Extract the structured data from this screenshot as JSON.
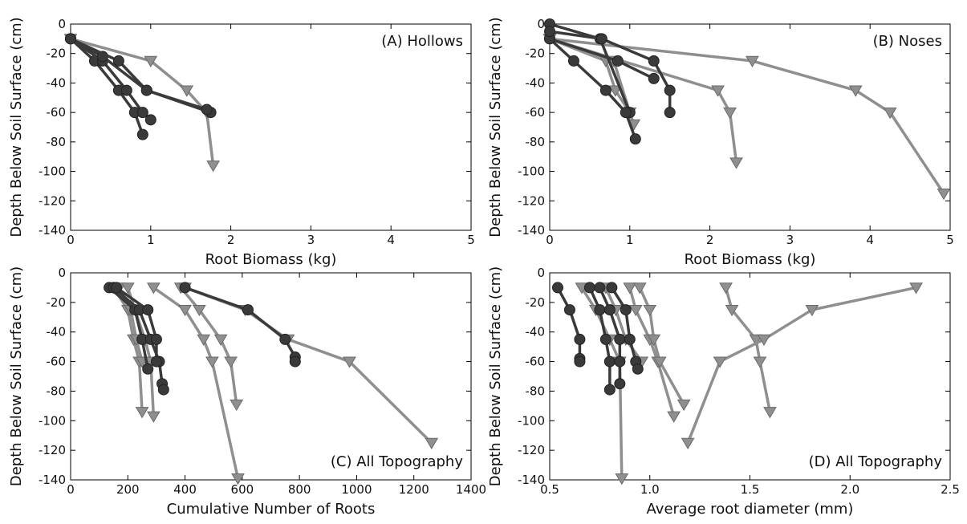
{
  "figure": {
    "ylabel": "Depth Below Soil Surface (cm)"
  },
  "colors": {
    "circle": "#3a3a3a",
    "circle_edge": "#222222",
    "triangle": "#8f8f8f",
    "triangle_edge": "#6a6a6a",
    "axes": "#000000"
  },
  "chart_data": [
    {
      "id": "A",
      "type": "line",
      "title": "(A) Hollows",
      "xlabel": "Root Biomass (kg)",
      "ylabel": "Depth Below Soil Surface (cm)",
      "xlim": [
        0,
        5
      ],
      "ylim": [
        -140,
        0
      ],
      "xticks": [
        0,
        1,
        2,
        3,
        4,
        5
      ],
      "yticks": [
        0,
        -20,
        -40,
        -60,
        -80,
        -100,
        -120,
        -140
      ],
      "grid": false,
      "series": [
        {
          "marker": "circle",
          "points": [
            [
              0,
              -10
            ],
            [
              0.3,
              -25
            ],
            [
              0.6,
              -45
            ],
            [
              0.8,
              -60
            ],
            [
              0.9,
              -75
            ]
          ]
        },
        {
          "marker": "circle",
          "points": [
            [
              0,
              -10
            ],
            [
              0.4,
              -25
            ],
            [
              0.7,
              -45
            ],
            [
              0.9,
              -60
            ],
            [
              1.0,
              -65
            ]
          ]
        },
        {
          "marker": "circle",
          "points": [
            [
              0,
              -10
            ],
            [
              0.4,
              -22
            ],
            [
              0.95,
              -45
            ],
            [
              1.75,
              -60
            ]
          ]
        },
        {
          "marker": "circle",
          "points": [
            [
              0,
              -10
            ],
            [
              0.6,
              -25
            ],
            [
              0.95,
              -45
            ],
            [
              1.7,
              -58
            ]
          ]
        },
        {
          "marker": "triangle",
          "points": [
            [
              0,
              -10
            ],
            [
              1.0,
              -25
            ],
            [
              1.45,
              -45
            ],
            [
              1.7,
              -60
            ],
            [
              1.78,
              -96
            ]
          ]
        }
      ]
    },
    {
      "id": "B",
      "type": "line",
      "title": "(B) Noses",
      "xlabel": "Root Biomass (kg)",
      "ylabel": "Depth Below Soil Surface (cm)",
      "xlim": [
        0,
        5
      ],
      "ylim": [
        -140,
        0
      ],
      "xticks": [
        0,
        1,
        2,
        3,
        4,
        5
      ],
      "yticks": [
        0,
        -20,
        -40,
        -60,
        -80,
        -100,
        -120,
        -140
      ],
      "grid": false,
      "series": [
        {
          "marker": "circle",
          "points": [
            [
              0,
              0
            ],
            [
              0.63,
              -10
            ],
            [
              1.0,
              -60
            ]
          ]
        },
        {
          "marker": "circle",
          "points": [
            [
              0,
              -10
            ],
            [
              0.3,
              -25
            ],
            [
              0.7,
              -45
            ],
            [
              0.95,
              -60
            ],
            [
              1.07,
              -78
            ]
          ]
        },
        {
          "marker": "circle",
          "points": [
            [
              0,
              -10
            ],
            [
              0.85,
              -25
            ],
            [
              1.3,
              -37
            ]
          ]
        },
        {
          "marker": "circle",
          "points": [
            [
              0,
              -5
            ],
            [
              0.65,
              -10
            ],
            [
              1.3,
              -25
            ],
            [
              1.5,
              -45
            ],
            [
              1.5,
              -60
            ]
          ]
        },
        {
          "marker": "triangle",
          "points": [
            [
              0,
              -10
            ],
            [
              0.7,
              -25
            ],
            [
              0.82,
              -45
            ],
            [
              1.0,
              -60
            ],
            [
              1.05,
              -68
            ]
          ]
        },
        {
          "marker": "triangle",
          "points": [
            [
              0,
              -10
            ],
            [
              0.8,
              -25
            ],
            [
              1.0,
              -60
            ]
          ]
        },
        {
          "marker": "triangle",
          "points": [
            [
              0,
              -10
            ],
            [
              2.1,
              -45
            ],
            [
              2.25,
              -60
            ],
            [
              2.33,
              -94
            ]
          ]
        },
        {
          "marker": "triangle",
          "points": [
            [
              0,
              -10
            ],
            [
              2.53,
              -25
            ],
            [
              3.82,
              -45
            ],
            [
              4.25,
              -60
            ],
            [
              4.92,
              -115
            ]
          ]
        }
      ]
    },
    {
      "id": "C",
      "type": "line",
      "title": "(C) All Topography",
      "xlabel": "Cumulative Number of Roots",
      "ylabel": "Depth Below Soil Surface (cm)",
      "xlim": [
        0,
        1400
      ],
      "ylim": [
        -140,
        0
      ],
      "xticks": [
        0,
        200,
        400,
        600,
        800,
        1000,
        1200,
        1400
      ],
      "yticks": [
        0,
        -20,
        -40,
        -60,
        -80,
        -100,
        -120,
        -140
      ],
      "grid": false,
      "series": [
        {
          "marker": "circle",
          "points": [
            [
              135,
              -10
            ],
            [
              225,
              -25
            ],
            [
              250,
              -45
            ],
            [
              270,
              -65
            ]
          ]
        },
        {
          "marker": "circle",
          "points": [
            [
              150,
              -10
            ],
            [
              240,
              -25
            ],
            [
              280,
              -45
            ],
            [
              310,
              -60
            ],
            [
              320,
              -75
            ],
            [
              325,
              -79
            ]
          ]
        },
        {
          "marker": "circle",
          "points": [
            [
              160,
              -10
            ],
            [
              270,
              -25
            ],
            [
              300,
              -45
            ],
            [
              300,
              -60
            ]
          ]
        },
        {
          "marker": "circle",
          "points": [
            [
              400,
              -10
            ],
            [
              620,
              -25
            ],
            [
              750,
              -45
            ],
            [
              785,
              -57
            ],
            [
              785,
              -60
            ]
          ]
        },
        {
          "marker": "triangle",
          "points": [
            [
              150,
              -10
            ],
            [
              200,
              -25
            ],
            [
              220,
              -45
            ],
            [
              240,
              -60
            ],
            [
              250,
              -94
            ]
          ]
        },
        {
          "marker": "triangle",
          "points": [
            [
              170,
              -10
            ],
            [
              210,
              -25
            ],
            [
              230,
              -45
            ],
            [
              250,
              -60
            ]
          ]
        },
        {
          "marker": "triangle",
          "points": [
            [
              200,
              -10
            ],
            [
              225,
              -25
            ],
            [
              260,
              -45
            ],
            [
              280,
              -60
            ],
            [
              290,
              -97
            ]
          ]
        },
        {
          "marker": "triangle",
          "points": [
            [
              290,
              -10
            ],
            [
              400,
              -25
            ],
            [
              465,
              -45
            ],
            [
              495,
              -60
            ],
            [
              585,
              -139
            ]
          ]
        },
        {
          "marker": "triangle",
          "points": [
            [
              385,
              -10
            ],
            [
              450,
              -25
            ],
            [
              525,
              -45
            ],
            [
              560,
              -60
            ],
            [
              580,
              -89
            ]
          ]
        },
        {
          "marker": "triangle",
          "points": [
            [
              400,
              -10
            ],
            [
              610,
              -25
            ],
            [
              760,
              -45
            ],
            [
              975,
              -60
            ],
            [
              1262,
              -115
            ]
          ]
        }
      ]
    },
    {
      "id": "D",
      "type": "line",
      "title": "(D) All Topography",
      "xlabel": "Average root diameter (mm)",
      "ylabel": "Depth Below Soil Surface (cm)",
      "xlim": [
        0.5,
        2.5
      ],
      "ylim": [
        -140,
        0
      ],
      "xticks": [
        0.5,
        1.0,
        1.5,
        2.0,
        2.5
      ],
      "yticks": [
        0,
        -20,
        -40,
        -60,
        -80,
        -100,
        -120,
        -140
      ],
      "grid": false,
      "series": [
        {
          "marker": "circle",
          "points": [
            [
              0.54,
              -10
            ],
            [
              0.6,
              -25
            ],
            [
              0.65,
              -45
            ],
            [
              0.65,
              -58
            ],
            [
              0.65,
              -60
            ]
          ]
        },
        {
          "marker": "circle",
          "points": [
            [
              0.7,
              -10
            ],
            [
              0.75,
              -25
            ],
            [
              0.78,
              -45
            ],
            [
              0.8,
              -60
            ],
            [
              0.8,
              -79
            ]
          ]
        },
        {
          "marker": "circle",
          "points": [
            [
              0.75,
              -10
            ],
            [
              0.8,
              -25
            ],
            [
              0.85,
              -45
            ],
            [
              0.85,
              -60
            ],
            [
              0.85,
              -75
            ]
          ]
        },
        {
          "marker": "circle",
          "points": [
            [
              0.81,
              -10
            ],
            [
              0.88,
              -25
            ],
            [
              0.9,
              -45
            ],
            [
              0.93,
              -60
            ],
            [
              0.94,
              -65
            ]
          ]
        },
        {
          "marker": "triangle",
          "points": [
            [
              0.66,
              -10
            ],
            [
              0.73,
              -25
            ],
            [
              0.8,
              -45
            ],
            [
              0.85,
              -60
            ],
            [
              0.86,
              -139
            ]
          ]
        },
        {
          "marker": "triangle",
          "points": [
            [
              0.78,
              -10
            ],
            [
              0.83,
              -25
            ],
            [
              0.88,
              -45
            ],
            [
              0.96,
              -60
            ]
          ]
        },
        {
          "marker": "triangle",
          "points": [
            [
              0.9,
              -10
            ],
            [
              0.93,
              -25
            ],
            [
              1.0,
              -45
            ],
            [
              1.04,
              -60
            ],
            [
              1.12,
              -97
            ]
          ]
        },
        {
          "marker": "triangle",
          "points": [
            [
              0.95,
              -10
            ],
            [
              1.0,
              -25
            ],
            [
              1.02,
              -45
            ],
            [
              1.05,
              -60
            ],
            [
              1.17,
              -89
            ]
          ]
        },
        {
          "marker": "triangle",
          "points": [
            [
              1.38,
              -10
            ],
            [
              1.41,
              -25
            ],
            [
              1.53,
              -45
            ],
            [
              1.55,
              -60
            ],
            [
              1.6,
              -94
            ]
          ]
        },
        {
          "marker": "triangle",
          "points": [
            [
              2.33,
              -10
            ],
            [
              1.81,
              -25
            ],
            [
              1.57,
              -45
            ],
            [
              1.35,
              -60
            ],
            [
              1.19,
              -115
            ]
          ]
        }
      ]
    }
  ]
}
